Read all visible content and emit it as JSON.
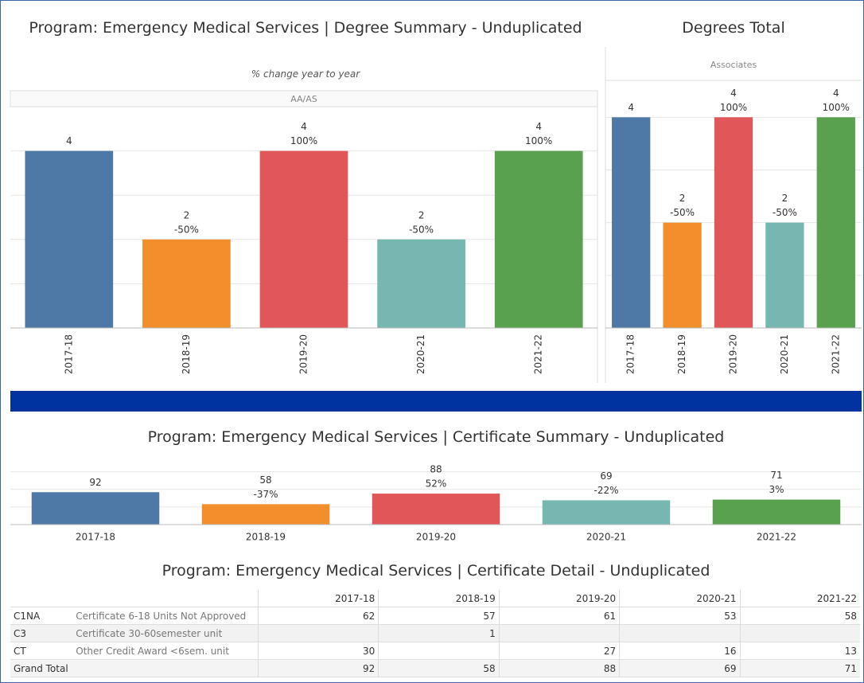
{
  "chart_data": [
    {
      "type": "bar",
      "title": "Program: Emergency Medical Services | Degree Summary - Unduplicated",
      "subtitle": "% change year to year",
      "panel_label": "AA/AS",
      "categories": [
        "2017-18",
        "2018-19",
        "2019-20",
        "2020-21",
        "2021-22"
      ],
      "values": [
        4,
        2,
        4,
        2,
        4
      ],
      "change": [
        null,
        -50,
        100,
        -50,
        100
      ],
      "change_labels": [
        null,
        "-50%",
        "100%",
        "-50%",
        "100%"
      ],
      "colors": [
        "#4e79a7",
        "#f28e2b",
        "#e15759",
        "#76b7b2",
        "#59a14f"
      ],
      "ylim": [
        0,
        5
      ],
      "yticks": [
        0,
        1,
        2,
        3,
        4
      ],
      "grid": true
    },
    {
      "type": "bar",
      "title": "Degrees Total",
      "panel_label": "Associates",
      "categories": [
        "2017-18",
        "2018-19",
        "2019-20",
        "2020-21",
        "2021-22"
      ],
      "values": [
        4,
        2,
        4,
        2,
        4
      ],
      "change": [
        null,
        -50,
        100,
        -50,
        100
      ],
      "change_labels": [
        null,
        "-50%",
        "100%",
        "-50%",
        "100%"
      ],
      "colors": [
        "#4e79a7",
        "#f28e2b",
        "#e15759",
        "#76b7b2",
        "#59a14f"
      ],
      "ylim": [
        0,
        4.7
      ],
      "yticks": [
        0,
        1,
        2,
        3,
        4
      ],
      "grid": true
    },
    {
      "type": "bar",
      "title": "Program: Emergency Medical Services | Certificate Summary - Unduplicated",
      "categories": [
        "2017-18",
        "2018-19",
        "2019-20",
        "2020-21",
        "2021-22"
      ],
      "values": [
        92,
        58,
        88,
        69,
        71
      ],
      "change": [
        null,
        -37,
        52,
        -22,
        3
      ],
      "change_labels": [
        null,
        "-37%",
        "52%",
        "-22%",
        "3%"
      ],
      "colors": [
        "#4e79a7",
        "#f28e2b",
        "#e15759",
        "#76b7b2",
        "#59a14f"
      ],
      "ylim": [
        0,
        165
      ],
      "yticks": [
        0,
        50,
        100,
        150
      ],
      "grid": true
    }
  ],
  "table": {
    "title": "Program: Emergency Medical Services | Certificate Detail - Unduplicated",
    "columns": [
      "2017-18",
      "2018-19",
      "2019-20",
      "2020-21",
      "2021-22"
    ],
    "rows": [
      {
        "code": "C1NA",
        "name": "Certificate 6-18 Units Not Approved",
        "values": [
          62,
          57,
          61,
          53,
          58
        ]
      },
      {
        "code": "C3",
        "name": "Certificate 30-60semester unit",
        "values": [
          null,
          1,
          null,
          null,
          null
        ]
      },
      {
        "code": "CT",
        "name": "Other Credit Award <6sem. unit",
        "values": [
          30,
          null,
          27,
          16,
          13
        ]
      }
    ],
    "total": {
      "label": "Grand Total",
      "values": [
        92,
        58,
        88,
        69,
        71
      ]
    }
  }
}
